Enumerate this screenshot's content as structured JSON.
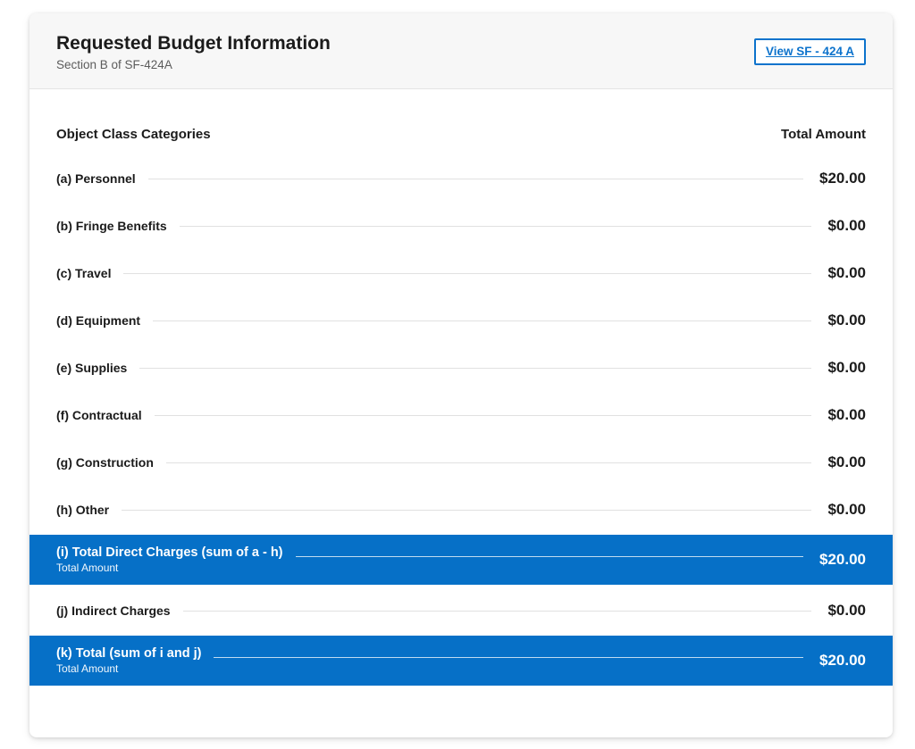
{
  "header": {
    "title": "Requested Budget Information",
    "subtitle": "Section B of SF-424A",
    "view_button_label": "View SF - 424 A"
  },
  "table": {
    "col_category": "Object Class Categories",
    "col_amount": "Total Amount",
    "rows": [
      {
        "label": "(a) Personnel",
        "sublabel": "",
        "amount": "$20.00",
        "highlight": false
      },
      {
        "label": "(b) Fringe Benefits",
        "sublabel": "",
        "amount": "$0.00",
        "highlight": false
      },
      {
        "label": "(c) Travel",
        "sublabel": "",
        "amount": "$0.00",
        "highlight": false
      },
      {
        "label": "(d) Equipment",
        "sublabel": "",
        "amount": "$0.00",
        "highlight": false
      },
      {
        "label": "(e) Supplies",
        "sublabel": "",
        "amount": "$0.00",
        "highlight": false
      },
      {
        "label": "(f) Contractual",
        "sublabel": "",
        "amount": "$0.00",
        "highlight": false
      },
      {
        "label": "(g) Construction",
        "sublabel": "",
        "amount": "$0.00",
        "highlight": false
      },
      {
        "label": "(h) Other",
        "sublabel": "",
        "amount": "$0.00",
        "highlight": false
      },
      {
        "label": "(i) Total Direct Charges (sum of a - h)",
        "sublabel": "Total Amount",
        "amount": "$20.00",
        "highlight": true
      },
      {
        "label": "(j) Indirect Charges",
        "sublabel": "",
        "amount": "$0.00",
        "highlight": false
      },
      {
        "label": "(k) Total (sum of i and j)",
        "sublabel": "Total Amount",
        "amount": "$20.00",
        "highlight": true
      }
    ]
  },
  "colors": {
    "accent_blue": "#0670c7",
    "link_blue": "#0d73cc",
    "header_background": "#f7f7f7",
    "leader_line": "#e1e1e1",
    "text": "#1b1b1b",
    "subtitle_text": "#5c5c5c"
  }
}
